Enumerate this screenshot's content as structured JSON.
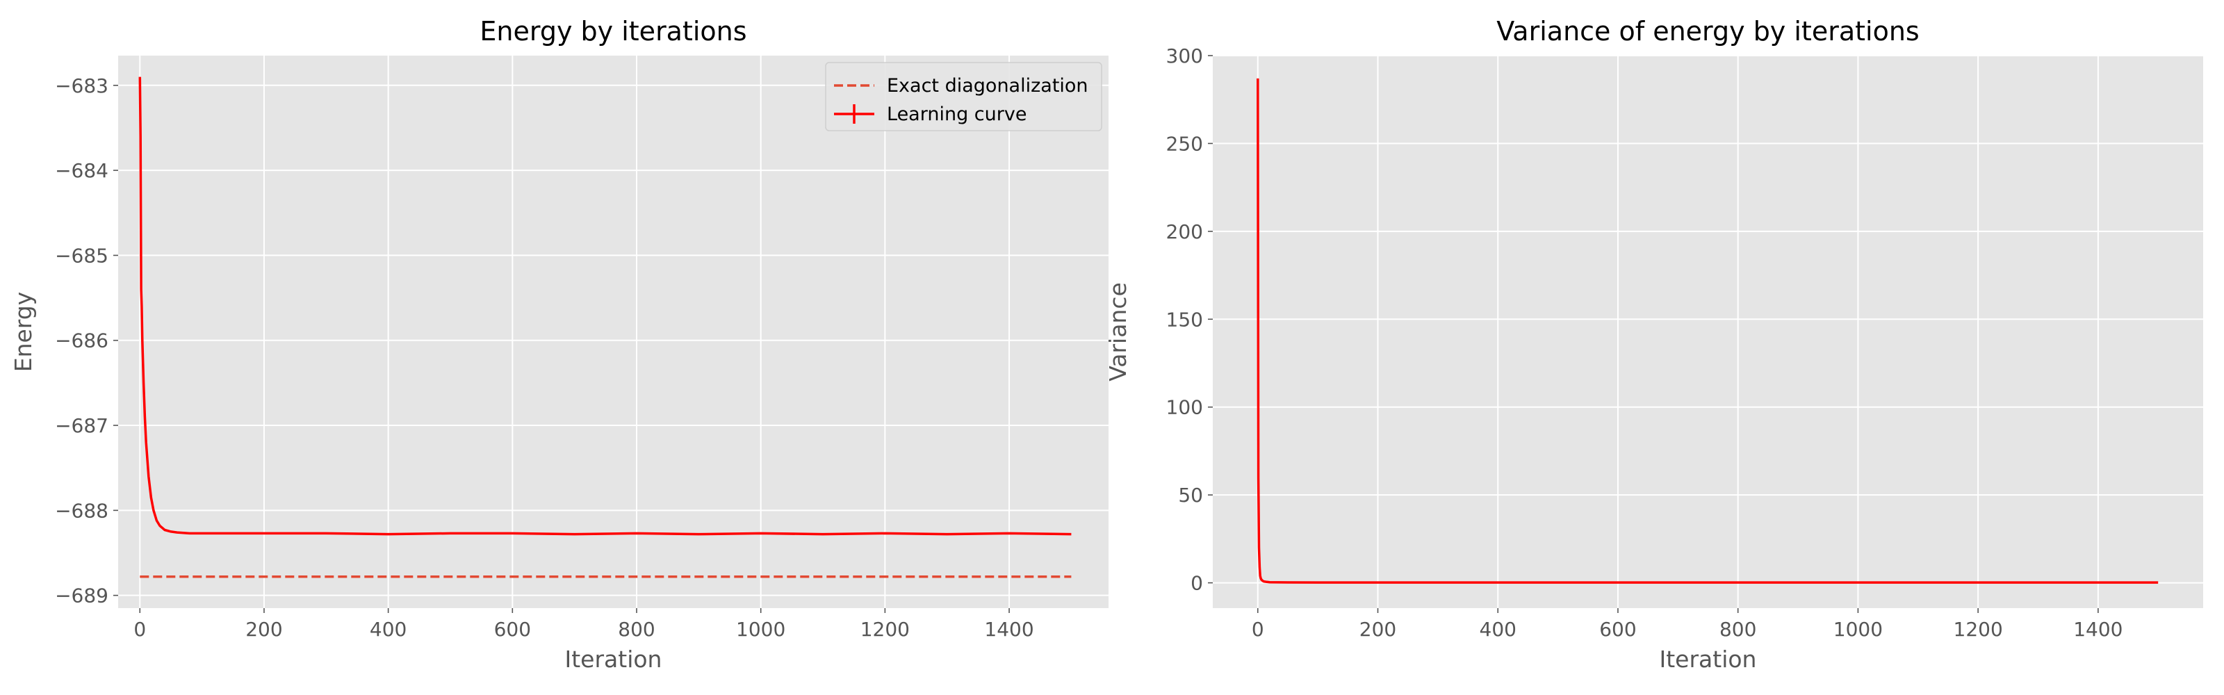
{
  "chart_data": [
    {
      "type": "line",
      "title": "Energy by iterations",
      "xlabel": "Iteration",
      "ylabel": "Energy",
      "xlim": [
        -35,
        1560
      ],
      "ylim": [
        -689.15,
        -682.65
      ],
      "xticks": [
        0,
        200,
        400,
        600,
        800,
        1000,
        1200,
        1400
      ],
      "yticks": [
        -689,
        -688,
        -687,
        -686,
        -685,
        -684,
        -683
      ],
      "xtick_labels": [
        "0",
        "200",
        "400",
        "600",
        "800",
        "1000",
        "1200",
        "1400"
      ],
      "ytick_labels": [
        "−689",
        "−688",
        "−687",
        "−686",
        "−685",
        "−684",
        "−683"
      ],
      "grid": true,
      "legend_position": "top-right",
      "legend": [
        "Exact diagonalization",
        "Learning curve"
      ],
      "series": [
        {
          "name": "Exact diagonalization",
          "style": "dashed",
          "color": "#e24a33",
          "x": [
            0,
            1500
          ],
          "y": [
            -688.78,
            -688.78
          ]
        },
        {
          "name": "Learning curve",
          "style": "solid",
          "color": "#ff0000",
          "x": [
            0,
            1,
            2,
            3,
            4,
            6,
            8,
            10,
            14,
            18,
            22,
            27,
            32,
            40,
            50,
            60,
            80,
            100,
            150,
            200,
            300,
            400,
            500,
            600,
            700,
            800,
            900,
            1000,
            1100,
            1200,
            1300,
            1400,
            1500
          ],
          "y": [
            -682.9,
            -683.6,
            -685.4,
            -685.6,
            -686.0,
            -686.5,
            -686.9,
            -687.2,
            -687.6,
            -687.85,
            -688.0,
            -688.12,
            -688.18,
            -688.23,
            -688.25,
            -688.26,
            -688.27,
            -688.27,
            -688.27,
            -688.27,
            -688.27,
            -688.28,
            -688.27,
            -688.27,
            -688.28,
            -688.27,
            -688.28,
            -688.27,
            -688.28,
            -688.27,
            -688.28,
            -688.27,
            -688.28
          ]
        }
      ]
    },
    {
      "type": "line",
      "title": "Variance of energy by iterations",
      "xlabel": "Iteration",
      "ylabel": "Variance",
      "xlim": [
        -75,
        1575
      ],
      "ylim": [
        -14.4,
        300
      ],
      "xticks": [
        0,
        200,
        400,
        600,
        800,
        1000,
        1200,
        1400
      ],
      "yticks": [
        0,
        50,
        100,
        150,
        200,
        250,
        300
      ],
      "xtick_labels": [
        "0",
        "200",
        "400",
        "600",
        "800",
        "1000",
        "1200",
        "1400"
      ],
      "ytick_labels": [
        "0",
        "50",
        "100",
        "150",
        "200",
        "250",
        "300"
      ],
      "grid": true,
      "series": [
        {
          "color": "#ff0000",
          "x": [
            0,
            1,
            2,
            3,
            4,
            5,
            6,
            8,
            10,
            15,
            20,
            50,
            100,
            200,
            400,
            600,
            800,
            1000,
            1200,
            1400,
            1500
          ],
          "y": [
            287,
            60,
            20,
            9,
            4,
            2.5,
            1.8,
            1.2,
            0.8,
            0.5,
            0.3,
            0.25,
            0.2,
            0.2,
            0.2,
            0.2,
            0.2,
            0.2,
            0.2,
            0.2,
            0.2
          ]
        }
      ]
    }
  ]
}
